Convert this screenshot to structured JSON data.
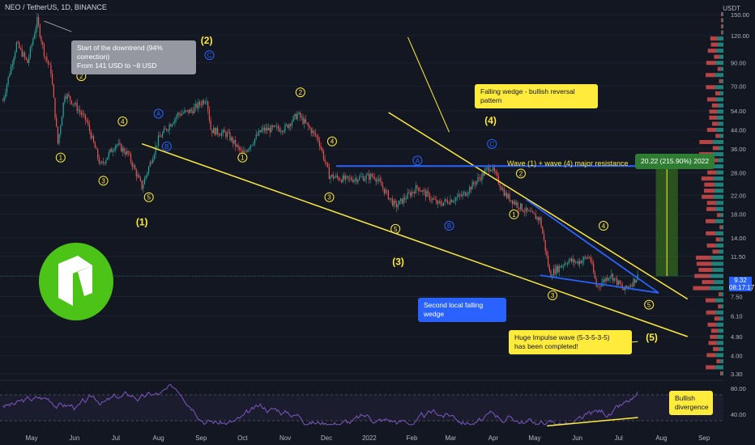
{
  "header": {
    "title": "NEO / TetherUS, 1D, BINANCE",
    "currency": "USDT"
  },
  "annotations": {
    "downtrend_line1": "Start of the downtrend (94% correction)",
    "downtrend_line2": "From 141 USD to ~8 USD",
    "falling_wedge": "Falling wedge - bullish reversal pattern",
    "resistance": "Wave (1) + wave (4) major resistance",
    "target": "20.22 (215.90%) 2022",
    "second_wedge": "Second local falling wedge",
    "impulse_line1": "Huge Impulse wave (5-3-5-3-5)",
    "impulse_line2": "has been completed!",
    "bullish_line1": "Bullish",
    "bullish_line2": "divergence"
  },
  "price_tag": {
    "price": "9.32",
    "countdown": "08:17:17"
  },
  "colors": {
    "background": "#131722",
    "candle_up": "#26a69a",
    "candle_down": "#ef5350",
    "trendline": "#ffeb3b",
    "resistance": "#2962ff",
    "wave_label": "#ffeb3b",
    "wave_abc": "#2962ff",
    "rsi": "#7e57c2",
    "target_box": "#2e5d1f",
    "logo_bg": "#4cc417"
  },
  "chart_data": {
    "type": "candlestick",
    "y_scale": "log",
    "ylim": [
      3.3,
      150
    ],
    "y_ticks": [
      "150.00",
      "120.00",
      "90.00",
      "70.00",
      "54.00",
      "44.00",
      "36.00",
      "28.00",
      "22.00",
      "18.00",
      "14.00",
      "11.50",
      "9.32",
      "7.50",
      "6.10",
      "4.90",
      "4.00",
      "3.30"
    ],
    "x_ticks": [
      "May",
      "Jun",
      "Jul",
      "Aug",
      "Sep",
      "Oct",
      "Nov",
      "Dec",
      "2022",
      "Feb",
      "Mar",
      "Apr",
      "May",
      "Jun",
      "Jul",
      "Aug",
      "Sep"
    ],
    "price_path": [
      [
        "2021-04-10",
        60
      ],
      [
        "2021-04-20",
        110
      ],
      [
        "2021-04-28",
        90
      ],
      [
        "2021-05-05",
        141
      ],
      [
        "2021-05-10",
        100
      ],
      [
        "2021-05-15",
        82
      ],
      [
        "2021-05-20",
        38
      ],
      [
        "2021-05-25",
        65
      ],
      [
        "2021-06-01",
        58
      ],
      [
        "2021-06-10",
        48
      ],
      [
        "2021-06-20",
        30
      ],
      [
        "2021-07-01",
        38
      ],
      [
        "2021-07-10",
        34
      ],
      [
        "2021-07-20",
        24
      ],
      [
        "2021-08-01",
        40
      ],
      [
        "2021-08-15",
        52
      ],
      [
        "2021-08-25",
        54
      ],
      [
        "2021-09-05",
        62
      ],
      [
        "2021-09-08",
        44
      ],
      [
        "2021-09-20",
        42
      ],
      [
        "2021-10-01",
        34
      ],
      [
        "2021-10-15",
        44
      ],
      [
        "2021-11-01",
        45
      ],
      [
        "2021-11-10",
        52
      ],
      [
        "2021-11-25",
        40
      ],
      [
        "2021-12-03",
        27
      ],
      [
        "2021-12-15",
        26
      ],
      [
        "2022-01-05",
        27
      ],
      [
        "2022-01-20",
        19.5
      ],
      [
        "2022-02-05",
        24
      ],
      [
        "2022-02-20",
        20
      ],
      [
        "2022-03-10",
        22
      ],
      [
        "2022-03-30",
        30
      ],
      [
        "2022-04-10",
        22
      ],
      [
        "2022-04-25",
        18.5
      ],
      [
        "2022-05-05",
        17
      ],
      [
        "2022-05-12",
        9.5
      ],
      [
        "2022-05-25",
        11
      ],
      [
        "2022-06-01",
        10.8
      ],
      [
        "2022-06-10",
        11.5
      ],
      [
        "2022-06-15",
        8.3
      ],
      [
        "2022-06-25",
        9.5
      ],
      [
        "2022-07-05",
        8.0
      ],
      [
        "2022-07-15",
        9.3
      ]
    ],
    "rsi": {
      "ylim": [
        20,
        90
      ],
      "y_ticks": [
        "80.00",
        "40.00"
      ],
      "levels": [
        70,
        30
      ]
    },
    "wave_labels": [
      {
        "text": "(1)",
        "date": "2021-07-20",
        "price": 16
      },
      {
        "text": "(2)",
        "date": "2021-09-05",
        "price": 110
      },
      {
        "text": "(3)",
        "date": "2022-01-22",
        "price": 10.5
      },
      {
        "text": "(4)",
        "date": "2022-03-30",
        "price": 47
      },
      {
        "text": "(5)",
        "date": "2022-07-25",
        "price": 4.7
      },
      {
        "text": "1",
        "date": "2021-05-22",
        "price": 32
      },
      {
        "text": "2",
        "date": "2021-06-06",
        "price": 76
      },
      {
        "text": "3",
        "date": "2021-06-22",
        "price": 25
      },
      {
        "text": "4",
        "date": "2021-07-06",
        "price": 47
      },
      {
        "text": "5",
        "date": "2021-07-25",
        "price": 21
      },
      {
        "text": "1",
        "date": "2021-10-01",
        "price": 32
      },
      {
        "text": "2",
        "date": "2021-11-12",
        "price": 64
      },
      {
        "text": "3",
        "date": "2021-12-03",
        "price": 21
      },
      {
        "text": "4",
        "date": "2021-12-05",
        "price": 38
      },
      {
        "text": "5",
        "date": "2022-01-20",
        "price": 15
      },
      {
        "text": "1",
        "date": "2022-04-16",
        "price": 17.5
      },
      {
        "text": "2",
        "date": "2022-04-21",
        "price": 27
      },
      {
        "text": "3",
        "date": "2022-05-14",
        "price": 7.4
      },
      {
        "text": "4",
        "date": "2022-06-20",
        "price": 15.5
      },
      {
        "text": "5",
        "date": "2022-07-23",
        "price": 6.7
      }
    ],
    "abc_labels": [
      {
        "text": "A",
        "date": "2021-08-01",
        "price": 51
      },
      {
        "text": "B",
        "date": "2021-08-07",
        "price": 36
      },
      {
        "text": "C",
        "date": "2021-09-07",
        "price": 95
      },
      {
        "text": "A",
        "date": "2022-02-05",
        "price": 31
      },
      {
        "text": "B",
        "date": "2022-02-28",
        "price": 15.5
      },
      {
        "text": "C",
        "date": "2022-03-31",
        "price": 37
      }
    ],
    "trendlines": [
      {
        "from": [
          "2021-07-20",
          38
        ],
        "to": [
          "2022-08-20",
          4.9
        ],
        "color": "yellow"
      },
      {
        "from": [
          "2022-01-15",
          53
        ],
        "to": [
          "2022-08-20",
          7.3
        ],
        "color": "yellow"
      },
      {
        "from": [
          "2022-04-25",
          21
        ],
        "to": [
          "2022-07-30",
          7.8
        ],
        "color": "blue"
      },
      {
        "from": [
          "2022-05-05",
          9.4
        ],
        "to": [
          "2022-07-30",
          7.8
        ],
        "color": "blue"
      }
    ],
    "resistance_level": 30,
    "target_range": [
      9.32,
      30
    ]
  }
}
